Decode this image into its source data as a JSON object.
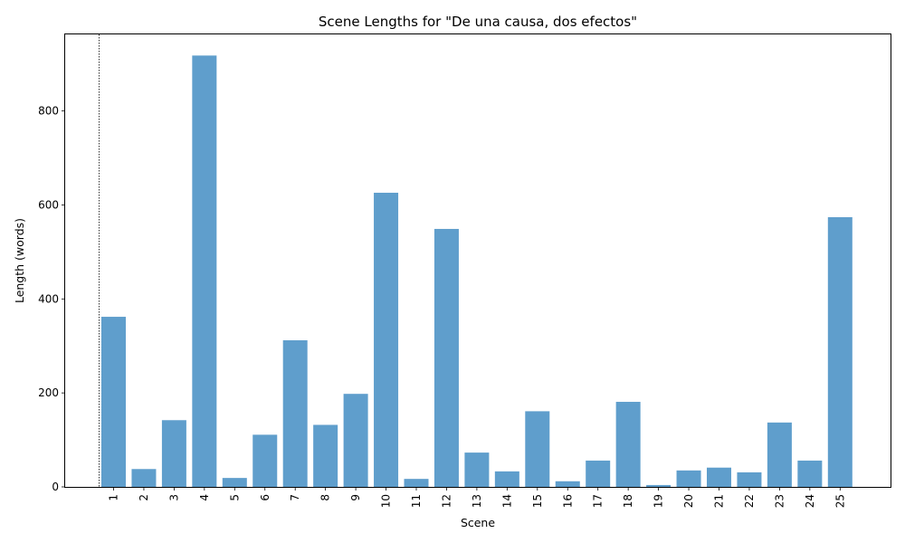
{
  "chart_data": {
    "type": "bar",
    "title": "Scene Lengths for \"De una causa, dos efectos\"",
    "xlabel": "Scene",
    "ylabel": "Length (words)",
    "categories": [
      "1",
      "2",
      "3",
      "4",
      "5",
      "6",
      "7",
      "8",
      "9",
      "10",
      "11",
      "12",
      "13",
      "14",
      "15",
      "16",
      "17",
      "18",
      "19",
      "20",
      "21",
      "22",
      "23",
      "24",
      "25"
    ],
    "values": [
      362,
      38,
      142,
      918,
      19,
      111,
      312,
      132,
      198,
      626,
      17,
      549,
      73,
      33,
      161,
      12,
      56,
      181,
      4,
      35,
      41,
      31,
      137,
      56,
      574
    ],
    "ylim": [
      0,
      963
    ],
    "yticks": [
      0,
      200,
      400,
      600,
      800
    ],
    "bar_color": "#5f9ecc",
    "grid": false,
    "marker_line": {
      "scene": "1",
      "style": "dotted"
    }
  }
}
